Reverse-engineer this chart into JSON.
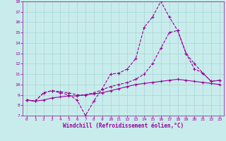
{
  "xlabel": "Windchill (Refroidissement éolien,°C)",
  "ylabel": "",
  "xlim": [
    -0.5,
    23.5
  ],
  "ylim": [
    7,
    18
  ],
  "xticks": [
    0,
    1,
    2,
    3,
    4,
    5,
    6,
    7,
    8,
    9,
    10,
    11,
    12,
    13,
    14,
    15,
    16,
    17,
    18,
    19,
    20,
    21,
    22,
    23
  ],
  "yticks": [
    7,
    8,
    9,
    10,
    11,
    12,
    13,
    14,
    15,
    16,
    17,
    18
  ],
  "background_color": "#c8ecec",
  "grid_color": "#aad4d4",
  "line_color": "#990099",
  "line1_x": [
    0,
    1,
    2,
    3,
    4,
    5,
    6,
    7,
    8,
    9,
    10,
    11,
    12,
    13,
    14,
    15,
    16,
    17,
    18,
    19,
    20,
    21,
    22,
    23
  ],
  "line1_y": [
    8.5,
    8.4,
    9.2,
    9.4,
    9.2,
    9.0,
    8.5,
    7.0,
    8.4,
    9.6,
    11.0,
    11.1,
    11.5,
    12.5,
    15.5,
    16.5,
    18.0,
    16.5,
    15.2,
    13.0,
    11.5,
    11.1,
    10.3,
    10.4
  ],
  "line2_x": [
    0,
    1,
    2,
    3,
    4,
    5,
    6,
    7,
    8,
    9,
    10,
    11,
    12,
    13,
    14,
    15,
    16,
    17,
    18,
    19,
    20,
    21,
    22,
    23
  ],
  "line2_y": [
    8.5,
    8.4,
    9.2,
    9.4,
    9.3,
    9.2,
    9.0,
    9.0,
    9.2,
    9.5,
    9.8,
    10.0,
    10.2,
    10.5,
    11.0,
    12.0,
    13.5,
    15.0,
    15.2,
    13.0,
    12.0,
    11.1,
    10.3,
    10.4
  ],
  "line3_x": [
    0,
    1,
    2,
    3,
    4,
    5,
    6,
    7,
    8,
    9,
    10,
    11,
    12,
    13,
    14,
    15,
    16,
    17,
    18,
    19,
    20,
    21,
    22,
    23
  ],
  "line3_y": [
    8.5,
    8.4,
    8.5,
    8.7,
    8.8,
    8.9,
    8.9,
    9.0,
    9.1,
    9.2,
    9.4,
    9.6,
    9.8,
    10.0,
    10.1,
    10.2,
    10.3,
    10.4,
    10.5,
    10.4,
    10.3,
    10.2,
    10.1,
    10.0
  ],
  "marker_style": "+",
  "marker_size": 3,
  "linewidth": 0.8,
  "tick_fontsize": 4.5,
  "label_fontsize": 5.5
}
